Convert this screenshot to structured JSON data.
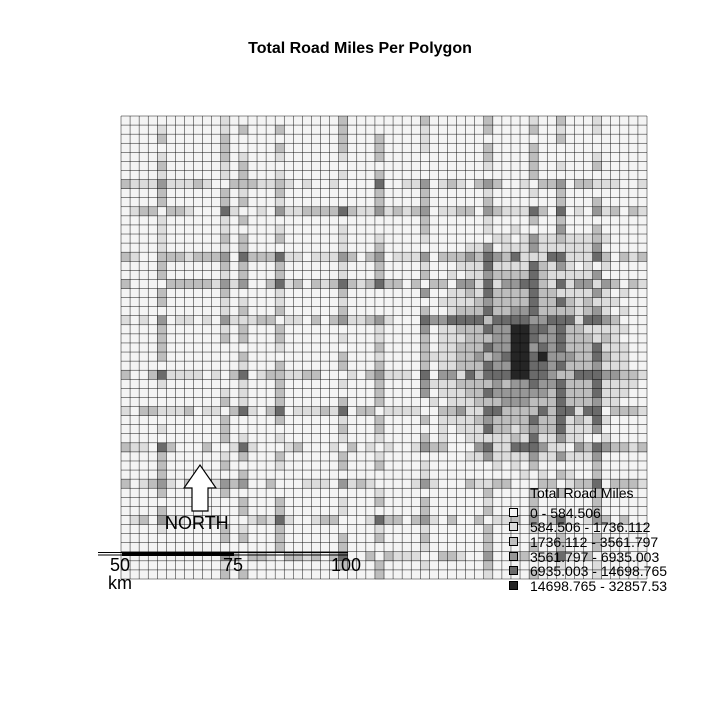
{
  "title": "Total Road Miles Per Polygon",
  "legend": {
    "title": "Total Road Miles",
    "classes": [
      {
        "label": "0 - 584.506",
        "color": "#f4f4f4"
      },
      {
        "label": "584.506 - 1736.112",
        "color": "#dcdcdc"
      },
      {
        "label": "1736.112 - 3561.797",
        "color": "#bdbdbd"
      },
      {
        "label": "3561.797 - 6935.003",
        "color": "#979797"
      },
      {
        "label": "6935.003 - 14698.765",
        "color": "#6a6a6a"
      },
      {
        "label": "14698.765 - 32857.53",
        "color": "#252525"
      }
    ]
  },
  "north_arrow": {
    "label": "NORTH"
  },
  "scale_bar": {
    "ticks": [
      "50",
      "75",
      "100"
    ],
    "unit": "km"
  }
}
